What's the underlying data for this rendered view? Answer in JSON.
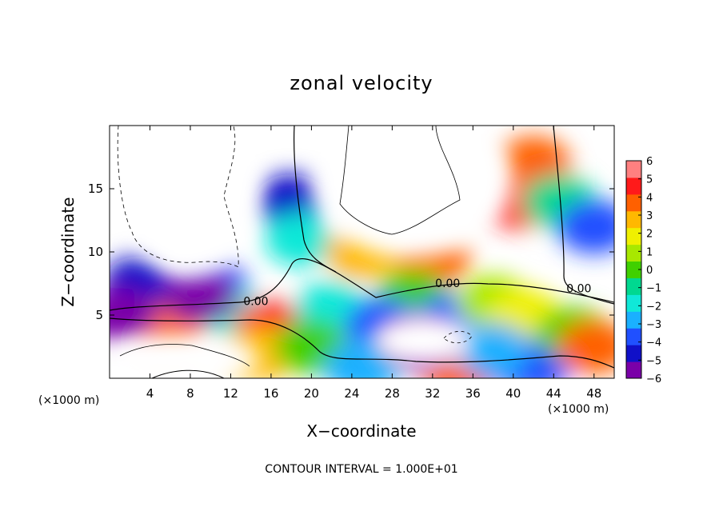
{
  "title": "zonal velocity",
  "footer": "CONTOUR INTERVAL = 1.000E+01",
  "colors": {
    "background": "#ffffff",
    "colorbar": [
      "#7a00a8",
      "#1010c8",
      "#2050ff",
      "#1ab0ff",
      "#10e8d8",
      "#00d890",
      "#40d000",
      "#a8e800",
      "#f0f000",
      "#ffb800",
      "#ff6000",
      "#ff1a1a",
      "#ff8080"
    ]
  },
  "chart_data": {
    "type": "heatmap",
    "title": "zonal velocity",
    "xlabel": "X−coordinate",
    "ylabel": "Z−coordinate",
    "x_unit_left": "(×1000 m)",
    "x_unit_right": "(×1000 m)",
    "xlim": [
      0,
      50
    ],
    "ylim": [
      0,
      20
    ],
    "x_ticks": [
      4,
      8,
      12,
      16,
      20,
      24,
      28,
      32,
      36,
      40,
      44,
      48
    ],
    "y_ticks": [
      5,
      10,
      15
    ],
    "colorbar": {
      "range": [
        -6,
        6
      ],
      "ticks": [
        6,
        5,
        4,
        3,
        2,
        1,
        0,
        -1,
        -2,
        -3,
        -4,
        -5,
        -6
      ],
      "tick_labels": [
        "6",
        "5",
        "4",
        "3",
        "2",
        "1",
        "0",
        "−1",
        "−2",
        "−3",
        "−4",
        "−5",
        "−6"
      ]
    },
    "contour_interval": "1.000E+01",
    "contour_labels": [
      {
        "text": "0.00",
        "x": 14.5,
        "z": 5.8
      },
      {
        "text": "0.00",
        "x": 33.5,
        "z": 7.2
      },
      {
        "text": "0.00",
        "x": 46.5,
        "z": 6.8
      }
    ],
    "features": [
      {
        "x": 18,
        "z": 14,
        "value": -4.5
      },
      {
        "x": 19,
        "z": 11,
        "value": -2
      },
      {
        "x": 25,
        "z": 10,
        "value": 3
      },
      {
        "x": 32,
        "z": 9.5,
        "value": 4
      },
      {
        "x": 40.5,
        "z": 14,
        "value": 4.5
      },
      {
        "x": 42,
        "z": 17,
        "value": 3.5
      },
      {
        "x": 44.5,
        "z": 14,
        "value": -1
      },
      {
        "x": 48,
        "z": 12,
        "value": -4
      },
      {
        "x": 3,
        "z": 7.5,
        "value": -4.5
      },
      {
        "x": 10,
        "z": 7.3,
        "value": -4
      },
      {
        "x": 12,
        "z": 5,
        "value": -2
      },
      {
        "x": 6,
        "z": 3.9,
        "value": 4
      },
      {
        "x": 16,
        "z": 4,
        "value": 4.5
      },
      {
        "x": 15,
        "z": 2,
        "value": 3
      },
      {
        "x": 22,
        "z": 5.5,
        "value": -1.5
      },
      {
        "x": 30,
        "z": 6.5,
        "value": 0
      },
      {
        "x": 27,
        "z": 4.2,
        "value": -4
      },
      {
        "x": 34,
        "z": 4.5,
        "value": -3.5
      },
      {
        "x": 38,
        "z": 6,
        "value": 0.5
      },
      {
        "x": 41,
        "z": 5,
        "value": 1.5
      },
      {
        "x": 36,
        "z": 1,
        "value": -4
      },
      {
        "x": 34.5,
        "z": 0.7,
        "value": 3.5
      },
      {
        "x": 42,
        "z": 1,
        "value": -4
      },
      {
        "x": 20,
        "z": 2.5,
        "value": 0
      },
      {
        "x": 38,
        "z": 2.2,
        "value": -3
      },
      {
        "x": 46,
        "z": 3.5,
        "value": 0
      },
      {
        "x": 48,
        "z": 2.5,
        "value": 3.5
      },
      {
        "x": 25,
        "z": 0.8,
        "value": -3
      },
      {
        "x": 30.5,
        "z": 2.8,
        "value": -6
      },
      {
        "x": 9,
        "z": 6.5,
        "value": -6
      },
      {
        "x": 1,
        "z": 5,
        "value": -6
      }
    ],
    "white_regions": [
      {
        "x": 8,
        "z": 15,
        "rx": 7,
        "rz": 7
      },
      {
        "x": 30,
        "z": 15.5,
        "rx": 10,
        "rz": 6
      },
      {
        "x": 7,
        "z": 1.5,
        "rx": 8,
        "rz": 2
      },
      {
        "x": 31,
        "z": 3,
        "rx": 5,
        "rz": 2
      }
    ]
  }
}
